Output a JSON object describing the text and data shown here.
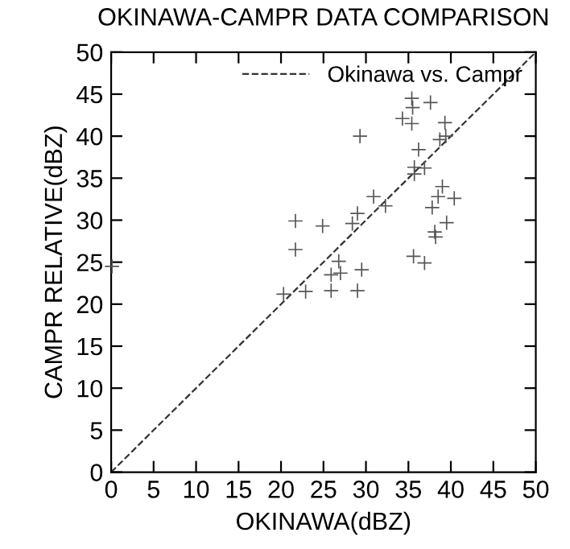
{
  "chart_data": {
    "type": "scatter",
    "title": "OKINAWA-CAMPR DATA COMPARISON",
    "xlabel": "OKINAWA(dBZ)",
    "ylabel": "CAMPR RELATIVE(dBZ)",
    "xlim": [
      0,
      50
    ],
    "ylim": [
      0,
      50
    ],
    "xticks": [
      0,
      5,
      10,
      15,
      20,
      25,
      30,
      35,
      40,
      45,
      50
    ],
    "yticks": [
      0,
      5,
      10,
      15,
      20,
      25,
      30,
      35,
      40,
      45,
      50
    ],
    "grid": false,
    "legend": "top right",
    "marker": "cross",
    "series": [
      {
        "color": "#555555",
        "x": [
          35.4,
          35.5,
          37.6,
          34.3,
          35.4,
          39.3,
          39.4,
          38.7,
          29.3,
          36.2,
          35.7,
          36.9,
          35.7,
          30.9,
          39.0,
          38.5,
          40.4,
          37.8,
          32.3,
          29.0,
          28.4,
          21.7,
          24.9,
          39.5,
          38.1,
          38.2,
          21.7,
          26.8,
          35.6,
          36.9,
          29.5,
          25.9,
          27.0,
          25.9,
          29.0,
          22.9,
          20.3,
          0.1
        ],
        "values": [
          44.5,
          43.4,
          44.0,
          42.1,
          41.5,
          41.6,
          40.0,
          39.6,
          40.0,
          38.4,
          36.3,
          36.2,
          35.5,
          32.8,
          34.0,
          32.8,
          32.6,
          31.5,
          31.7,
          30.8,
          29.6,
          29.9,
          29.3,
          29.7,
          28.6,
          28.0,
          26.5,
          25.1,
          25.7,
          24.9,
          24.1,
          23.5,
          23.7,
          21.6,
          21.6,
          21.5,
          21.2,
          24.5
        ]
      },
      {
        "type": "line",
        "name": "Okinawa vs. Campr",
        "color": "#333333",
        "line_style": "dashed",
        "marker": "none",
        "x": [
          0,
          50
        ],
        "values": [
          0,
          50
        ]
      }
    ]
  }
}
